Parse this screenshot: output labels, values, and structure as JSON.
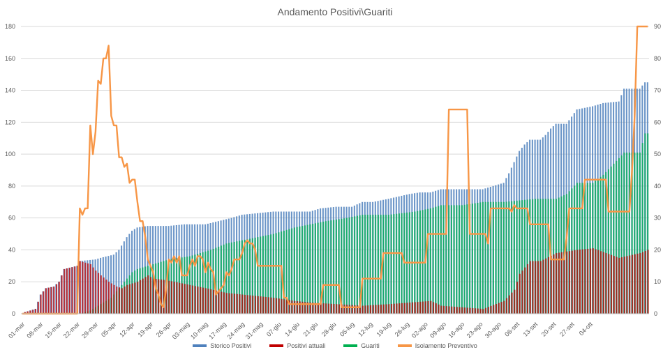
{
  "chart_data": {
    "type": "bar",
    "title": "Andamento Positivi\\Guariti",
    "ylim_left": [
      0,
      180
    ],
    "ylim_right": [
      0,
      90
    ],
    "yticks_left": [
      0,
      20,
      40,
      60,
      80,
      100,
      120,
      140,
      160,
      180
    ],
    "yticks_right": [
      0,
      10,
      20,
      30,
      40,
      50,
      60,
      70,
      80,
      90
    ],
    "grid": true,
    "legend_position": "bottom",
    "x_start": "2020-03-01",
    "x_labels": [
      "01-mar",
      "08-mar",
      "15-mar",
      "22-mar",
      "29-mar",
      "05-apr",
      "12-apr",
      "19-apr",
      "26-apr",
      "03-mag",
      "10-mag",
      "17-mag",
      "24-mag",
      "31-mag",
      "07-giu",
      "14-giu",
      "21-giu",
      "28-giu",
      "05-lug",
      "12-lug",
      "19-lug",
      "26-lug",
      "02-ago",
      "09-ago",
      "16-ago",
      "23-ago",
      "30-ago",
      "06-set",
      "13-set",
      "20-set",
      "27-set",
      "04-ott"
    ],
    "colors": {
      "storico": "#4f81bd",
      "positivi": "#c00000",
      "guariti": "#00b050",
      "isolamento": "#f79646"
    },
    "series": [
      {
        "name": "Storico Positivi",
        "axis": "left",
        "type": "bar",
        "breakpoints": [
          [
            1,
            1
          ],
          [
            3,
            2
          ],
          [
            5,
            3
          ],
          [
            7,
            12
          ],
          [
            9,
            16
          ],
          [
            12,
            17
          ],
          [
            14,
            20
          ],
          [
            16,
            28
          ],
          [
            21,
            30
          ],
          [
            22,
            33
          ],
          [
            28,
            34
          ],
          [
            30,
            35
          ],
          [
            35,
            37
          ],
          [
            37,
            40
          ],
          [
            40,
            48
          ],
          [
            42,
            52
          ],
          [
            44,
            54
          ],
          [
            48,
            55
          ],
          [
            56,
            55
          ],
          [
            62,
            56
          ],
          [
            70,
            56
          ],
          [
            75,
            58
          ],
          [
            80,
            60
          ],
          [
            84,
            62
          ],
          [
            90,
            63
          ],
          [
            96,
            64
          ],
          [
            104,
            64
          ],
          [
            110,
            64
          ],
          [
            114,
            66
          ],
          [
            120,
            67
          ],
          [
            126,
            67
          ],
          [
            130,
            70
          ],
          [
            134,
            70
          ],
          [
            140,
            72
          ],
          [
            148,
            75
          ],
          [
            152,
            76
          ],
          [
            156,
            76
          ],
          [
            160,
            78
          ],
          [
            168,
            78
          ],
          [
            172,
            78
          ],
          [
            176,
            78
          ],
          [
            178,
            79
          ],
          [
            180,
            80
          ],
          [
            184,
            82
          ],
          [
            186,
            88
          ],
          [
            188,
            95
          ],
          [
            190,
            102
          ],
          [
            192,
            106
          ],
          [
            194,
            109
          ],
          [
            198,
            109
          ],
          [
            200,
            112
          ],
          [
            202,
            116
          ],
          [
            204,
            119
          ],
          [
            208,
            119
          ],
          [
            212,
            128
          ],
          [
            218,
            130
          ],
          [
            222,
            132
          ],
          [
            228,
            133
          ],
          [
            230,
            141
          ],
          [
            236,
            141
          ],
          [
            238,
            145
          ],
          [
            239,
            145
          ]
        ]
      },
      {
        "name": "Positivi attuali",
        "axis": "left",
        "type": "bar",
        "breakpoints": [
          [
            1,
            1
          ],
          [
            3,
            2
          ],
          [
            5,
            3
          ],
          [
            7,
            12
          ],
          [
            9,
            16
          ],
          [
            12,
            17
          ],
          [
            14,
            20
          ],
          [
            16,
            28
          ],
          [
            21,
            30
          ],
          [
            22,
            33
          ],
          [
            26,
            31
          ],
          [
            28,
            27
          ],
          [
            30,
            24
          ],
          [
            33,
            20
          ],
          [
            36,
            17
          ],
          [
            38,
            16
          ],
          [
            40,
            18
          ],
          [
            44,
            20
          ],
          [
            48,
            24
          ],
          [
            50,
            22
          ],
          [
            55,
            21
          ],
          [
            58,
            20
          ],
          [
            64,
            18
          ],
          [
            70,
            16
          ],
          [
            78,
            13
          ],
          [
            84,
            12
          ],
          [
            90,
            11
          ],
          [
            96,
            10
          ],
          [
            104,
            8
          ],
          [
            110,
            7
          ],
          [
            120,
            6
          ],
          [
            130,
            5
          ],
          [
            140,
            6
          ],
          [
            148,
            7
          ],
          [
            156,
            8
          ],
          [
            160,
            5
          ],
          [
            168,
            4
          ],
          [
            176,
            3
          ],
          [
            184,
            8
          ],
          [
            188,
            15
          ],
          [
            190,
            25
          ],
          [
            194,
            33
          ],
          [
            198,
            33
          ],
          [
            204,
            38
          ],
          [
            212,
            40
          ],
          [
            218,
            41
          ],
          [
            228,
            35
          ],
          [
            236,
            38
          ],
          [
            239,
            40
          ]
        ]
      },
      {
        "name": "Guariti",
        "axis": "left",
        "type": "bar",
        "breakpoints": [
          [
            22,
            0
          ],
          [
            24,
            1
          ],
          [
            26,
            2
          ],
          [
            28,
            4
          ],
          [
            30,
            6
          ],
          [
            32,
            8
          ],
          [
            34,
            10
          ],
          [
            36,
            14
          ],
          [
            38,
            18
          ],
          [
            40,
            22
          ],
          [
            42,
            26
          ],
          [
            44,
            28
          ],
          [
            48,
            30
          ],
          [
            52,
            32
          ],
          [
            56,
            34
          ],
          [
            60,
            35
          ],
          [
            64,
            36
          ],
          [
            68,
            38
          ],
          [
            72,
            40
          ],
          [
            78,
            44
          ],
          [
            84,
            46
          ],
          [
            90,
            48
          ],
          [
            96,
            50
          ],
          [
            104,
            54
          ],
          [
            110,
            56
          ],
          [
            116,
            58
          ],
          [
            124,
            60
          ],
          [
            130,
            62
          ],
          [
            140,
            62
          ],
          [
            150,
            64
          ],
          [
            156,
            66
          ],
          [
            160,
            68
          ],
          [
            168,
            68
          ],
          [
            176,
            70
          ],
          [
            184,
            70
          ],
          [
            190,
            71
          ],
          [
            196,
            72
          ],
          [
            204,
            72
          ],
          [
            208,
            75
          ],
          [
            212,
            82
          ],
          [
            218,
            82
          ],
          [
            222,
            87
          ],
          [
            230,
            101
          ],
          [
            236,
            101
          ],
          [
            238,
            113
          ],
          [
            239,
            113
          ]
        ]
      },
      {
        "name": "Isolamento Preventivo",
        "axis": "right",
        "type": "line",
        "breakpoints": [
          [
            0,
            0
          ],
          [
            20,
            0
          ],
          [
            21,
            0
          ],
          [
            22,
            33
          ],
          [
            23,
            31
          ],
          [
            24,
            33
          ],
          [
            25,
            33
          ],
          [
            26,
            59
          ],
          [
            27,
            50
          ],
          [
            28,
            57
          ],
          [
            29,
            73
          ],
          [
            30,
            72
          ],
          [
            31,
            80
          ],
          [
            32,
            80
          ],
          [
            33,
            84
          ],
          [
            34,
            62
          ],
          [
            35,
            59
          ],
          [
            36,
            59
          ],
          [
            37,
            49
          ],
          [
            38,
            49
          ],
          [
            39,
            46
          ],
          [
            40,
            47
          ],
          [
            41,
            41
          ],
          [
            42,
            42
          ],
          [
            43,
            42
          ],
          [
            44,
            35
          ],
          [
            45,
            29
          ],
          [
            46,
            29
          ],
          [
            47,
            24
          ],
          [
            48,
            17
          ],
          [
            49,
            15
          ],
          [
            50,
            13
          ],
          [
            51,
            8
          ],
          [
            52,
            6
          ],
          [
            53,
            3
          ],
          [
            54,
            2
          ],
          [
            55,
            8
          ],
          [
            56,
            17
          ],
          [
            57,
            16
          ],
          [
            58,
            18
          ],
          [
            59,
            16
          ],
          [
            60,
            18
          ],
          [
            61,
            12
          ],
          [
            62,
            12
          ],
          [
            63,
            12
          ],
          [
            64,
            15
          ],
          [
            65,
            17
          ],
          [
            66,
            15
          ],
          [
            67,
            18
          ],
          [
            68,
            18
          ],
          [
            69,
            17
          ],
          [
            70,
            13
          ],
          [
            71,
            16
          ],
          [
            72,
            14
          ],
          [
            73,
            13
          ],
          [
            74,
            6
          ],
          [
            75,
            7
          ],
          [
            76,
            8
          ],
          [
            77,
            9
          ],
          [
            78,
            13
          ],
          [
            79,
            12
          ],
          [
            80,
            14
          ],
          [
            81,
            17
          ],
          [
            82,
            17
          ],
          [
            83,
            17
          ],
          [
            84,
            19
          ],
          [
            85,
            22
          ],
          [
            86,
            23
          ],
          [
            87,
            22
          ],
          [
            88,
            22
          ],
          [
            89,
            20
          ],
          [
            90,
            15
          ],
          [
            91,
            15
          ],
          [
            92,
            15
          ],
          [
            99,
            15
          ],
          [
            100,
            5
          ],
          [
            101,
            5
          ],
          [
            102,
            3
          ],
          [
            103,
            3
          ],
          [
            114,
            3
          ],
          [
            115,
            9
          ],
          [
            116,
            9
          ],
          [
            121,
            9
          ],
          [
            122,
            2
          ],
          [
            123,
            2
          ],
          [
            129,
            2
          ],
          [
            130,
            11
          ],
          [
            131,
            11
          ],
          [
            137,
            11
          ],
          [
            138,
            19
          ],
          [
            139,
            19
          ],
          [
            145,
            19
          ],
          [
            146,
            16
          ],
          [
            147,
            16
          ],
          [
            154,
            16
          ],
          [
            155,
            25
          ],
          [
            156,
            25
          ],
          [
            162,
            25
          ],
          [
            163,
            64
          ],
          [
            164,
            64
          ],
          [
            170,
            64
          ],
          [
            171,
            25
          ],
          [
            172,
            25
          ],
          [
            177,
            25
          ],
          [
            178,
            22
          ],
          [
            179,
            33
          ],
          [
            180,
            33
          ],
          [
            186,
            33
          ],
          [
            187,
            32
          ],
          [
            188,
            34
          ],
          [
            189,
            33
          ],
          [
            193,
            33
          ],
          [
            194,
            28
          ],
          [
            195,
            28
          ],
          [
            201,
            28
          ],
          [
            202,
            17
          ],
          [
            203,
            17
          ],
          [
            207,
            17
          ],
          [
            208,
            24
          ],
          [
            209,
            33
          ],
          [
            210,
            33
          ],
          [
            214,
            33
          ],
          [
            215,
            42
          ],
          [
            216,
            42
          ],
          [
            223,
            42
          ],
          [
            224,
            32
          ],
          [
            225,
            32
          ],
          [
            231,
            32
          ],
          [
            232,
            32
          ],
          [
            233,
            45
          ],
          [
            234,
            62
          ],
          [
            235,
            90
          ],
          [
            236,
            90
          ],
          [
            239,
            90
          ]
        ]
      }
    ],
    "n_points": 240
  },
  "legend": {
    "storico_label": "Storico Positivi",
    "positivi_label": "Positivi attuali",
    "guariti_label": "Guariti",
    "isolamento_label": "Isolamento Preventivo"
  }
}
